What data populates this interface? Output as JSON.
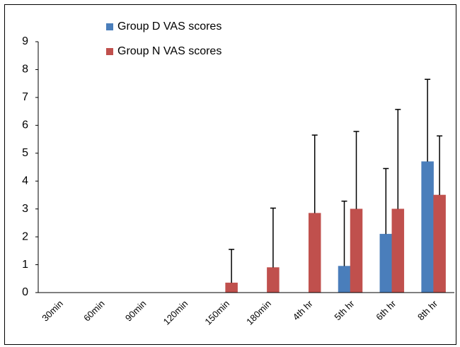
{
  "chart_data": {
    "type": "bar",
    "categories": [
      "30min",
      "60min",
      "90min",
      "120min",
      "150min",
      "180min",
      "4th hr",
      "5th hr",
      "6th hr",
      "8th hr"
    ],
    "series": [
      {
        "name": "Group D VAS scores",
        "color": "#4a7ebb",
        "values": [
          0,
          0,
          0,
          0,
          0,
          0,
          0,
          0.95,
          2.1,
          4.7
        ],
        "errors": [
          0,
          0,
          0,
          0,
          0,
          0,
          0,
          2.33,
          2.35,
          2.95
        ]
      },
      {
        "name": "Group N VAS scores",
        "color": "#c0504d",
        "values": [
          0,
          0,
          0,
          0,
          0.35,
          0.9,
          2.85,
          3.0,
          3.0,
          3.5
        ],
        "errors": [
          0,
          0,
          0,
          0,
          1.2,
          2.13,
          2.8,
          2.78,
          3.57,
          2.12
        ]
      }
    ],
    "ylim": [
      0,
      9
    ],
    "yticks": [
      0,
      1,
      2,
      3,
      4,
      5,
      6,
      7,
      8,
      9
    ]
  }
}
